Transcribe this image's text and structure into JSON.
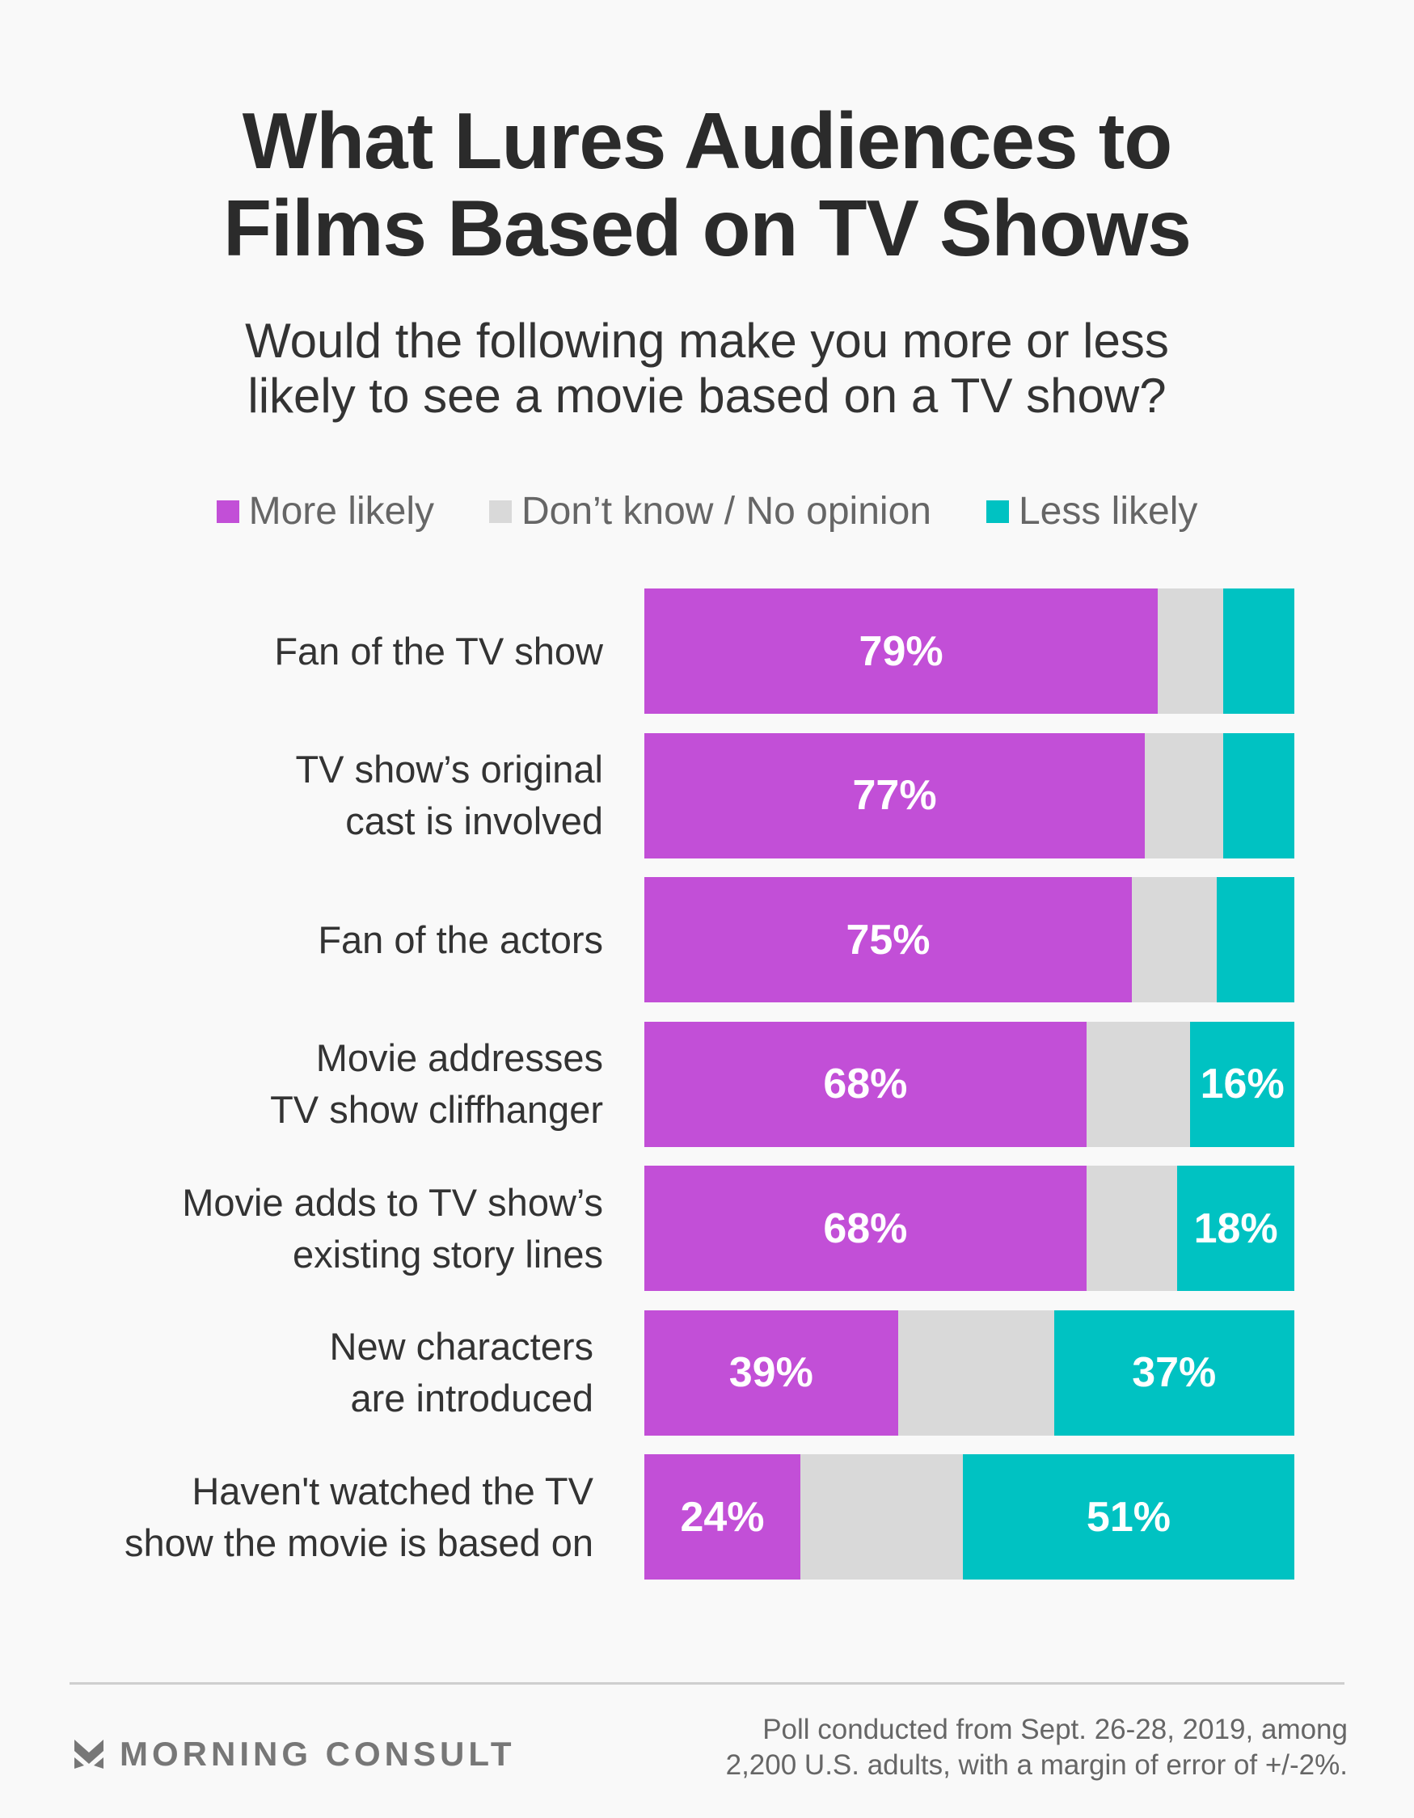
{
  "title_lines": [
    "What Lures Audiences to",
    "Films Based on TV Shows"
  ],
  "subtitle_lines": [
    "Would the following make you more or less",
    "likely to see a movie based on a TV show?"
  ],
  "colors": {
    "more": "#c24fd7",
    "dont_know": "#d9d9d9",
    "less": "#00c2c2"
  },
  "chart_data": {
    "type": "bar",
    "orientation": "horizontal",
    "stacked": true,
    "title": "What Lures Audiences to Films Based on TV Shows",
    "subtitle": "Would the following make you more or less likely to see a movie based on a TV show?",
    "legend": [
      "More likely",
      "Don’t know / No opinion",
      "Less likely"
    ],
    "legend_position": "top",
    "xlim": [
      0,
      100
    ],
    "categories": [
      [
        "Fan of the TV show"
      ],
      [
        "TV show’s original",
        "cast is involved"
      ],
      [
        "Fan of the actors"
      ],
      [
        "Movie addresses",
        "TV show cliffhanger"
      ],
      [
        "Movie adds to TV show’s",
        "existing story lines"
      ],
      [
        "New characters",
        "are introduced"
      ],
      [
        "Haven't watched the TV",
        "show the movie is based on"
      ]
    ],
    "series": [
      {
        "name": "More likely",
        "values": [
          79,
          77,
          75,
          68,
          68,
          39,
          24
        ],
        "labels": [
          "79%",
          "77%",
          "75%",
          "68%",
          "68%",
          "39%",
          "24%"
        ]
      },
      {
        "name": "Don’t know / No opinion",
        "values": [
          10,
          12,
          13,
          16,
          14,
          24,
          25
        ],
        "labels": [
          "",
          "",
          "",
          "",
          "",
          "",
          ""
        ]
      },
      {
        "name": "Less likely",
        "values": [
          11,
          11,
          12,
          16,
          18,
          37,
          51
        ],
        "labels": [
          "",
          "",
          "",
          "16%",
          "18%",
          "37%",
          "51%"
        ]
      }
    ]
  },
  "footer": {
    "brand": "MORNING CONSULT",
    "note_lines": [
      "Poll conducted from Sept. 26-28, 2019, among",
      "2,200 U.S. adults, with a margin of error of +/-2%."
    ]
  }
}
